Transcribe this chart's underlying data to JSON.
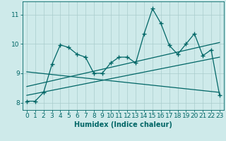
{
  "xlabel": "Humidex (Indice chaleur)",
  "bg_color": "#ceeaea",
  "grid_color": "#aacccc",
  "line_color": "#006666",
  "xlim": [
    -0.5,
    23.5
  ],
  "ylim": [
    7.75,
    11.45
  ],
  "xticks": [
    0,
    1,
    2,
    3,
    4,
    5,
    6,
    7,
    8,
    9,
    10,
    11,
    12,
    13,
    14,
    15,
    16,
    17,
    18,
    19,
    20,
    21,
    22,
    23
  ],
  "yticks": [
    8,
    9,
    10,
    11
  ],
  "data_x": [
    0,
    1,
    2,
    3,
    4,
    5,
    6,
    7,
    8,
    9,
    10,
    11,
    12,
    13,
    14,
    15,
    16,
    17,
    18,
    19,
    20,
    21,
    22,
    23
  ],
  "data_y": [
    8.05,
    8.05,
    8.35,
    9.3,
    9.97,
    9.88,
    9.65,
    9.55,
    9.0,
    9.0,
    9.35,
    9.55,
    9.55,
    9.35,
    10.35,
    11.2,
    10.7,
    9.95,
    9.65,
    10.0,
    10.35,
    9.6,
    9.8,
    8.25
  ],
  "trend1_x": [
    0,
    23
  ],
  "trend1_y": [
    8.55,
    10.05
  ],
  "trend2_x": [
    0,
    23
  ],
  "trend2_y": [
    8.25,
    9.55
  ],
  "trend3_x": [
    0,
    23
  ],
  "trend3_y": [
    9.05,
    8.35
  ],
  "marker": "+",
  "markersize": 4,
  "markeredgewidth": 1.0,
  "linewidth": 0.9,
  "xlabel_fontsize": 7,
  "tick_fontsize": 6.5,
  "ytick_labels": [
    "8",
    "9",
    "10",
    "11"
  ]
}
